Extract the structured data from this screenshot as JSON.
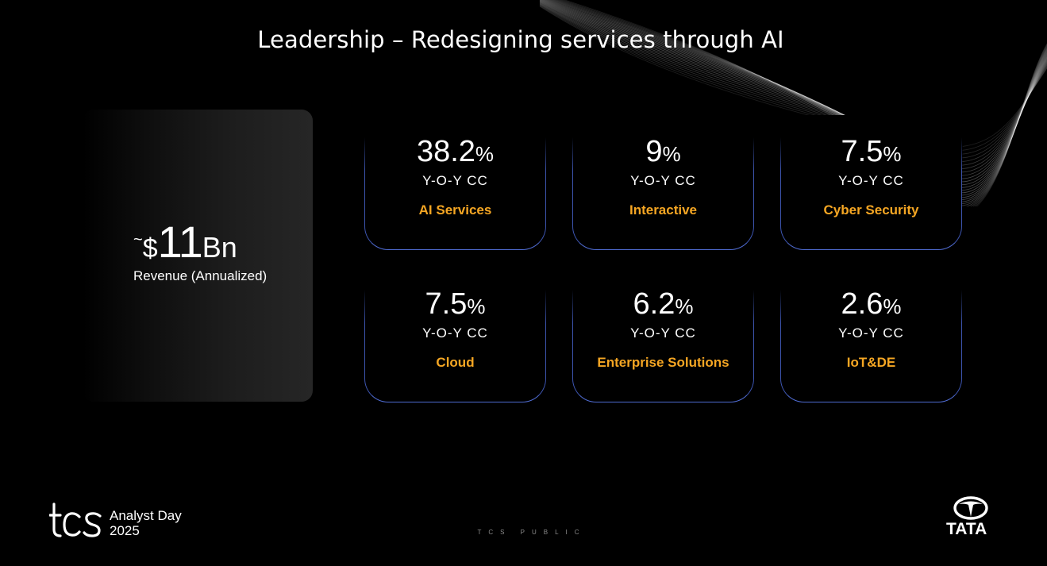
{
  "slide": {
    "title": "Leadership – Redesigning services through AI",
    "classification": "TCS PUBLIC"
  },
  "headline": {
    "prefix": "~",
    "currency": "$",
    "value": "11",
    "unit": "Bn",
    "label": "Revenue (Annualized)"
  },
  "metrics": [
    {
      "value": "38.2",
      "unit": "%",
      "sub": "Y-O-Y CC",
      "label": "AI Services"
    },
    {
      "value": "9",
      "unit": "%",
      "sub": "Y-O-Y CC",
      "label": "Interactive"
    },
    {
      "value": "7.5",
      "unit": "%",
      "sub": "Y-O-Y CC",
      "label": "Cyber Security"
    },
    {
      "value": "7.5",
      "unit": "%",
      "sub": "Y-O-Y CC",
      "label": "Cloud"
    },
    {
      "value": "6.2",
      "unit": "%",
      "sub": "Y-O-Y CC",
      "label": "Enterprise Solutions"
    },
    {
      "value": "2.6",
      "unit": "%",
      "sub": "Y-O-Y CC",
      "label": "IoT&DE"
    }
  ],
  "footer": {
    "event_line1": "Analyst Day",
    "event_line2": "2025",
    "tcs_logo_text": "tcs",
    "brand_word": "TATA"
  },
  "colors": {
    "background": "#000000",
    "text": "#ffffff",
    "accent_label": "#f5a623",
    "card_border": "#4f6bd1"
  },
  "icons": {
    "tcs_logo": "tcs-logo-icon",
    "tata_emblem": "tata-emblem-icon",
    "decor": "wave-lines-decoration"
  }
}
